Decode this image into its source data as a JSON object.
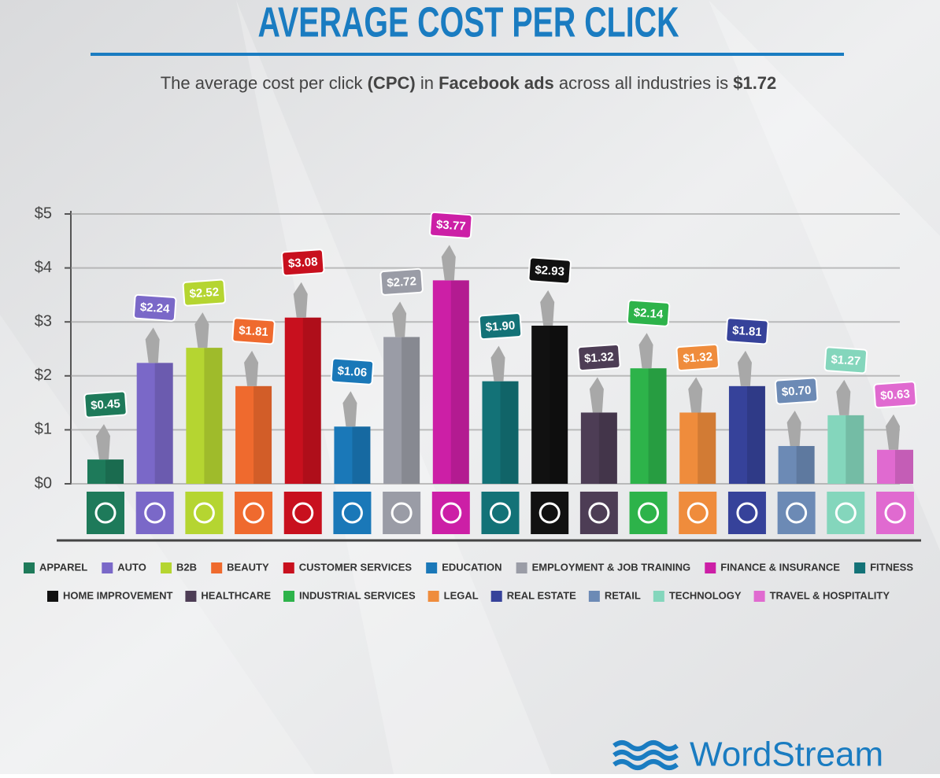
{
  "chart_data": {
    "type": "bar",
    "title": "AVERAGE COST PER CLICK",
    "subtitle_parts": [
      "The average cost per click ",
      "(CPC)",
      " in ",
      "Facebook ads",
      " across all industries is ",
      "$1.72"
    ],
    "categories": [
      "APPAREL",
      "AUTO",
      "B2B",
      "BEAUTY",
      "CUSTOMER SERVICES",
      "EDUCATION",
      "EMPLOYMENT & JOB TRAINING",
      "FINANCE & INSURANCE",
      "FITNESS",
      "HOME IMPROVEMENT",
      "HEALTHCARE",
      "INDUSTRIAL SERVICES",
      "LEGAL",
      "REAL ESTATE",
      "RETAIL",
      "TECHNOLOGY",
      "TRAVEL & HOSPITALITY"
    ],
    "values": [
      0.45,
      2.24,
      2.52,
      1.81,
      3.08,
      1.06,
      2.72,
      3.77,
      1.9,
      2.93,
      1.32,
      2.14,
      1.32,
      1.81,
      0.7,
      1.27,
      0.63
    ],
    "value_labels": [
      "$0.45",
      "$2.24",
      "$2.52",
      "$1.81",
      "$3.08",
      "$1.06",
      "$2.72",
      "$3.77",
      "$1.90",
      "$2.93",
      "$1.32",
      "$2.14",
      "$1.32",
      "$1.81",
      "$0.70",
      "$1.27",
      "$0.63"
    ],
    "colors": [
      "#1e7a5a",
      "#7a68c8",
      "#b5d531",
      "#ef6a2e",
      "#c8101e",
      "#1a78b8",
      "#9a9ca6",
      "#cc1fa6",
      "#137277",
      "#111111",
      "#4d3d55",
      "#2db34a",
      "#ef8c3c",
      "#36429a",
      "#6c8ab5",
      "#84d6bc",
      "#e06ad0"
    ],
    "ylim": [
      0,
      5
    ],
    "yticks": [
      {
        "value": 0,
        "label": "$0"
      },
      {
        "value": 1,
        "label": "$1"
      },
      {
        "value": 2,
        "label": "$2"
      },
      {
        "value": 3,
        "label": "$3"
      },
      {
        "value": 4,
        "label": "$4"
      },
      {
        "value": 5,
        "label": "$5"
      }
    ],
    "grid": true,
    "brand": "WordStream"
  }
}
